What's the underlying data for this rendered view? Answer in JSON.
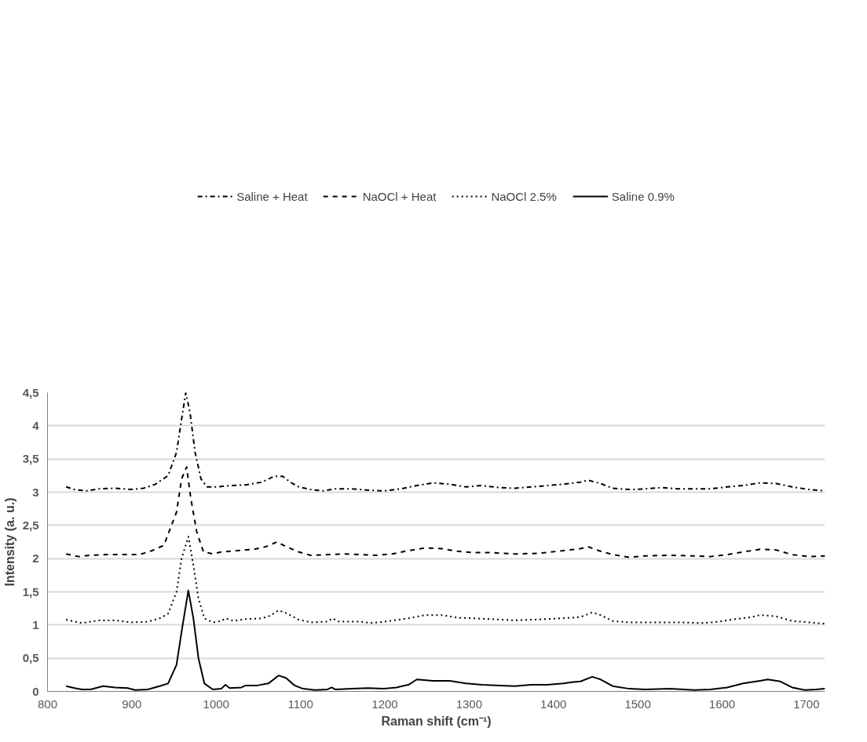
{
  "chart_data": {
    "type": "line",
    "xlabel": "Raman shift (cm⁻¹)",
    "ylabel": "Intensity (a. u.)",
    "xlim": [
      800,
      1722
    ],
    "xticks": [
      800,
      900,
      1000,
      1100,
      1200,
      1300,
      1400,
      1500,
      1600,
      1700
    ],
    "ylim": [
      0,
      4.5
    ],
    "yticks": [
      0,
      {
        "value": 0.5,
        "label": "0,5"
      },
      1,
      {
        "value": 1.5,
        "label": "1,5"
      },
      2,
      {
        "value": 2.5,
        "label": "2,5"
      },
      3,
      {
        "value": 3.5,
        "label": "3,5"
      },
      4,
      {
        "value": 4.5,
        "label": "4,5"
      }
    ],
    "grid": "y",
    "legend": "top",
    "marker": "none",
    "series": [
      {
        "name": "Saline + Heat",
        "color": "#000000",
        "line_style": "dashdot",
        "x": [
          822,
          832,
          846,
          861,
          880,
          899,
          914,
          928,
          943,
          953,
          959,
          964,
          969,
          975,
          982,
          989,
          1001,
          1016,
          1035,
          1054,
          1069,
          1079,
          1088,
          1098,
          1112,
          1127,
          1141,
          1161,
          1180,
          1199,
          1219,
          1238,
          1257,
          1277,
          1296,
          1315,
          1335,
          1354,
          1374,
          1393,
          1412,
          1432,
          1441,
          1456,
          1470,
          1490,
          1509,
          1528,
          1548,
          1567,
          1586,
          1606,
          1625,
          1645,
          1664,
          1683,
          1703,
          1722
        ],
        "values": [
          3.08,
          3.04,
          3.02,
          3.05,
          3.06,
          3.04,
          3.06,
          3.12,
          3.25,
          3.6,
          4.1,
          4.5,
          4.2,
          3.6,
          3.2,
          3.08,
          3.08,
          3.1,
          3.11,
          3.15,
          3.24,
          3.24,
          3.15,
          3.08,
          3.04,
          3.02,
          3.05,
          3.05,
          3.03,
          3.02,
          3.05,
          3.1,
          3.14,
          3.12,
          3.08,
          3.1,
          3.07,
          3.06,
          3.08,
          3.1,
          3.12,
          3.15,
          3.18,
          3.13,
          3.06,
          3.04,
          3.05,
          3.07,
          3.05,
          3.05,
          3.05,
          3.08,
          3.1,
          3.14,
          3.13,
          3.08,
          3.04,
          3.02
        ]
      },
      {
        "name": "NaOCl + Heat",
        "color": "#000000",
        "line_style": "dashed",
        "x": [
          822,
          837,
          851,
          870,
          890,
          909,
          924,
          938,
          953,
          959,
          965,
          970,
          977,
          985,
          996,
          1006,
          1025,
          1045,
          1059,
          1072,
          1083,
          1098,
          1112,
          1132,
          1151,
          1170,
          1190,
          1209,
          1228,
          1248,
          1267,
          1286,
          1306,
          1325,
          1354,
          1383,
          1412,
          1432,
          1441,
          1451,
          1470,
          1490,
          1509,
          1538,
          1567,
          1586,
          1606,
          1625,
          1645,
          1664,
          1683,
          1703,
          1722
        ],
        "values": [
          2.07,
          2.03,
          2.05,
          2.06,
          2.06,
          2.06,
          2.12,
          2.2,
          2.7,
          3.2,
          3.38,
          2.9,
          2.4,
          2.1,
          2.07,
          2.1,
          2.12,
          2.14,
          2.18,
          2.25,
          2.18,
          2.1,
          2.05,
          2.06,
          2.07,
          2.06,
          2.05,
          2.07,
          2.12,
          2.16,
          2.15,
          2.11,
          2.09,
          2.09,
          2.07,
          2.08,
          2.12,
          2.15,
          2.18,
          2.13,
          2.06,
          2.02,
          2.04,
          2.05,
          2.04,
          2.03,
          2.06,
          2.1,
          2.14,
          2.13,
          2.06,
          2.03,
          2.04
        ]
      },
      {
        "name": "NaOCl 2.5%",
        "color": "#000000",
        "line_style": "dotted",
        "x": [
          822,
          841,
          861,
          880,
          899,
          919,
          933,
          943,
          953,
          959,
          967,
          973,
          979,
          986,
          996,
          1006,
          1011,
          1021,
          1035,
          1054,
          1064,
          1074,
          1083,
          1098,
          1112,
          1132,
          1138,
          1146,
          1170,
          1185,
          1199,
          1228,
          1248,
          1267,
          1286,
          1306,
          1325,
          1354,
          1374,
          1393,
          1422,
          1432,
          1446,
          1456,
          1470,
          1490,
          1519,
          1548,
          1577,
          1596,
          1616,
          1635,
          1645,
          1664,
          1683,
          1703,
          1722
        ],
        "values": [
          1.08,
          1.03,
          1.07,
          1.07,
          1.04,
          1.05,
          1.1,
          1.17,
          1.5,
          2.0,
          2.33,
          1.9,
          1.4,
          1.1,
          1.04,
          1.06,
          1.1,
          1.06,
          1.09,
          1.1,
          1.14,
          1.22,
          1.18,
          1.08,
          1.04,
          1.05,
          1.1,
          1.05,
          1.05,
          1.03,
          1.05,
          1.1,
          1.15,
          1.15,
          1.11,
          1.1,
          1.09,
          1.07,
          1.08,
          1.09,
          1.11,
          1.12,
          1.19,
          1.15,
          1.06,
          1.04,
          1.04,
          1.04,
          1.03,
          1.05,
          1.09,
          1.12,
          1.15,
          1.13,
          1.06,
          1.04,
          1.02
        ]
      },
      {
        "name": "Saline 0.9%",
        "color": "#000000",
        "line_style": "solid",
        "x": [
          822,
          832,
          841,
          851,
          866,
          880,
          895,
          904,
          919,
          933,
          943,
          953,
          959,
          967,
          973,
          979,
          986,
          996,
          1006,
          1011,
          1016,
          1030,
          1035,
          1049,
          1062,
          1074,
          1083,
          1093,
          1103,
          1117,
          1132,
          1137,
          1141,
          1161,
          1180,
          1199,
          1214,
          1228,
          1238,
          1257,
          1277,
          1296,
          1315,
          1335,
          1354,
          1374,
          1393,
          1412,
          1422,
          1432,
          1446,
          1456,
          1470,
          1490,
          1509,
          1538,
          1567,
          1586,
          1606,
          1625,
          1645,
          1654,
          1669,
          1683,
          1698,
          1712,
          1722
        ],
        "values": [
          0.08,
          0.05,
          0.03,
          0.03,
          0.08,
          0.06,
          0.05,
          0.02,
          0.03,
          0.08,
          0.12,
          0.4,
          0.9,
          1.52,
          1.1,
          0.5,
          0.12,
          0.03,
          0.04,
          0.1,
          0.05,
          0.06,
          0.09,
          0.09,
          0.12,
          0.24,
          0.2,
          0.09,
          0.04,
          0.02,
          0.03,
          0.06,
          0.03,
          0.04,
          0.05,
          0.04,
          0.06,
          0.1,
          0.18,
          0.16,
          0.16,
          0.12,
          0.1,
          0.09,
          0.08,
          0.1,
          0.1,
          0.12,
          0.14,
          0.15,
          0.22,
          0.18,
          0.08,
          0.04,
          0.03,
          0.04,
          0.02,
          0.03,
          0.06,
          0.12,
          0.16,
          0.18,
          0.15,
          0.06,
          0.02,
          0.03,
          0.04
        ]
      }
    ]
  }
}
